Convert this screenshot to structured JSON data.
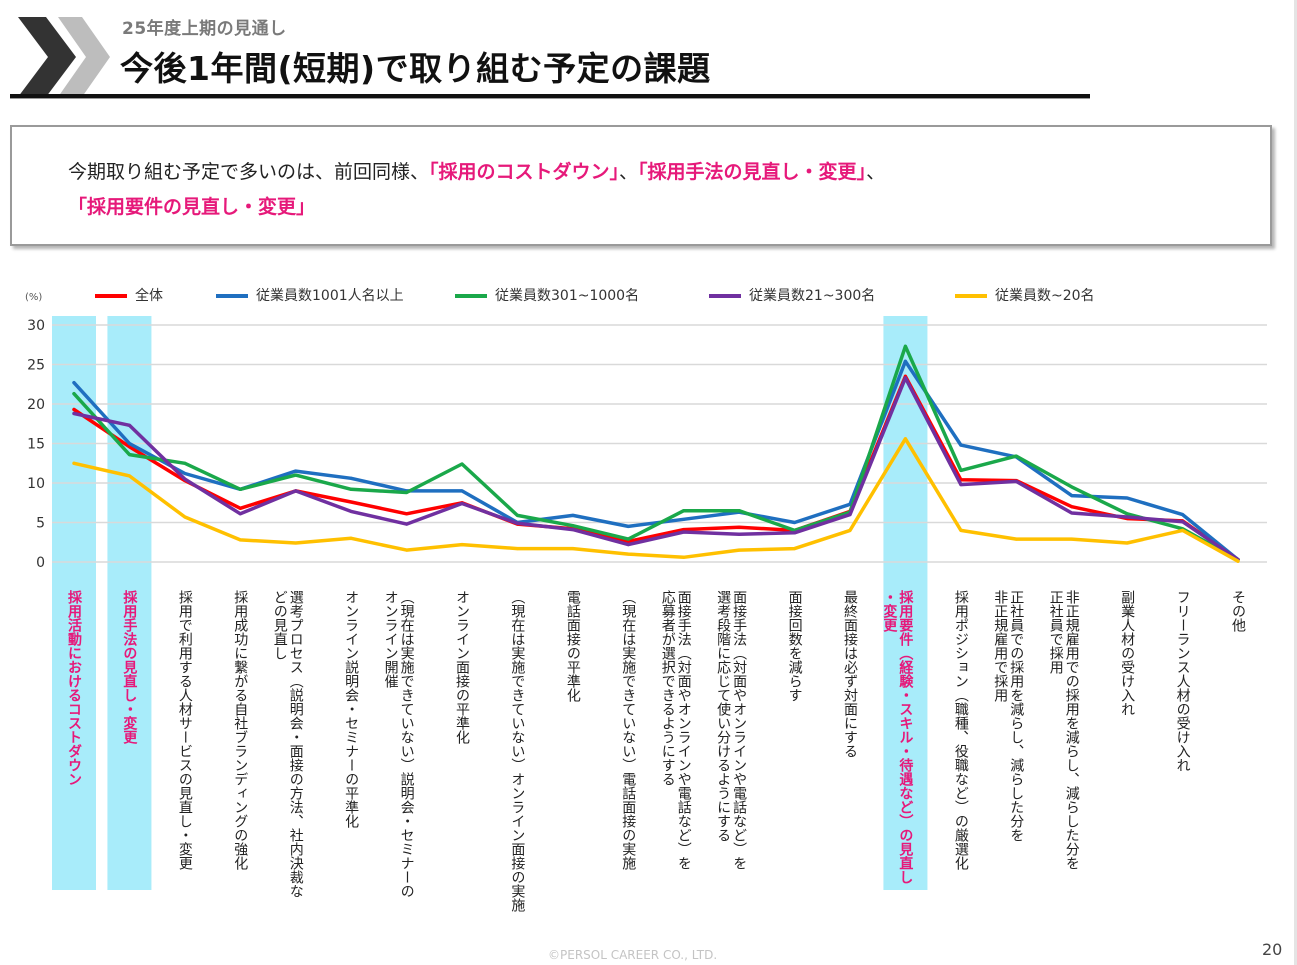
{
  "header": {
    "subtitle": "25年度上期の見通し",
    "title": "今後1年間(短期)で取り組む予定の課題"
  },
  "summary": {
    "prefix": "今期取り組む予定で多いのは、前回同様、",
    "highlight1": "「採用のコストダウン」",
    "sep1": "、",
    "highlight2": "「採用手法の見直し・変更」",
    "sep2": "、",
    "highlight3": "「採用要件の見直し・変更」"
  },
  "footer": {
    "copyright": "©PERSOL CAREER CO., LTD.",
    "page_number": "20"
  },
  "colors": {
    "highlight_text": "#e6197a",
    "highlight_band": "#a8ecfa",
    "gridline": "#d9d9d9"
  },
  "chart_data": {
    "type": "line",
    "title": "",
    "xlabel": "",
    "ylabel": "(%)",
    "ylim": [
      0,
      30
    ],
    "yticks": [
      0,
      5,
      10,
      15,
      20,
      25,
      30
    ],
    "grid": true,
    "legend_position": "top",
    "categories": [
      "採用活動におけるコストダウン",
      "採用手法の見直し・変更",
      "採用で利用する人材サービスの見直し・変更",
      "採用成功に繋がる自社ブランディングの強化",
      "選考プロセス（説明会・面接の方法、社内決裁などの見直し",
      "オンライン説明会・セミナーの平準化",
      "（現在は実施できていない）説明会・セミナーのオンライン開催",
      "オンライン面接の平準化",
      "（現在は実施できていない）オンライン面接の実施",
      "電話面接の平準化",
      "（現在は実施できていない）電話面接の実施",
      "面接手法（対面やオンラインや電話など）を応募者が選択できるようにする",
      "面接手法（対面やオンラインや電話など）を選考段階に応じて使い分けるようにする",
      "面接回数を減らす",
      "最終面接は必ず対面にする",
      "採用要件（経験・スキル・待遇など）の見直し・変更",
      "採用ポジション（職種、役職など）の厳選化",
      "正社員での採用を減らし、減らした分を非正規雇用で採用",
      "非正規雇用での採用を減らし、減らした分を正社員で採用",
      "副業人材の受け入れ",
      "フリーランス人材の受け入れ",
      "その他"
    ],
    "category_labels_wrapped": [
      [
        "採用活動におけるコストダウン"
      ],
      [
        "採用手法の見直し・変更"
      ],
      [
        "採用で利用する人材サービスの見直し・変更"
      ],
      [
        "採用成功に繋がる自社ブランディングの強化"
      ],
      [
        "選考プロセス（説明会・面接の方法、社内決裁な",
        "どの見直し"
      ],
      [
        "オンライン説明会・セミナーの平準化"
      ],
      [
        "（現在は実施できていない）説明会・セミナーの",
        "オンライン開催"
      ],
      [
        "オンライン面接の平準化"
      ],
      [
        "（現在は実施できていない）オンライン面接の実施"
      ],
      [
        "電話面接の平準化"
      ],
      [
        "（現在は実施できていない）電話面接の実施"
      ],
      [
        "面接手法（対面やオンラインや電話など）を",
        "応募者が選択できるようにする"
      ],
      [
        "面接手法（対面やオンラインや電話など）を",
        "選考段階に応じて使い分けるようにする"
      ],
      [
        "面接回数を減らす"
      ],
      [
        "最終面接は必ず対面にする"
      ],
      [
        "採用要件（経験・スキル・待遇など）の見直し",
        "・変更"
      ],
      [
        "採用ポジション（職種、役職など）の厳選化"
      ],
      [
        "正社員での採用を減らし、減らした分を",
        "非正規雇用で採用"
      ],
      [
        "非正規雇用での採用を減らし、減らした分を",
        "正社員で採用"
      ],
      [
        "副業人材の受け入れ"
      ],
      [
        "フリーランス人材の受け入れ"
      ],
      [
        "その他"
      ]
    ],
    "highlighted_categories": [
      0,
      1,
      15
    ],
    "series": [
      {
        "name": "全体",
        "color": "#ff0000",
        "values": [
          19.3,
          14.6,
          10.3,
          6.8,
          9.0,
          7.6,
          6.1,
          7.5,
          4.8,
          4.2,
          2.6,
          4.1,
          4.4,
          4.0,
          6.4,
          23.5,
          10.4,
          10.3,
          7.0,
          5.5,
          5.2,
          0.3
        ]
      },
      {
        "name": "従業員数1001人名以上",
        "color": "#1f6fc0",
        "values": [
          22.7,
          15.0,
          11.2,
          9.2,
          11.5,
          10.6,
          9.0,
          9.0,
          5.0,
          5.9,
          4.5,
          5.4,
          6.3,
          5.0,
          7.3,
          25.4,
          14.8,
          13.3,
          8.4,
          8.1,
          6.0,
          0.3
        ]
      },
      {
        "name": "従業員数301~1000名",
        "color": "#1aa84a",
        "values": [
          21.3,
          13.6,
          12.5,
          9.2,
          11.0,
          9.2,
          8.8,
          12.4,
          5.9,
          4.6,
          2.9,
          6.5,
          6.5,
          4.0,
          6.3,
          27.3,
          11.6,
          13.4,
          9.5,
          6.1,
          4.2,
          0.3
        ]
      },
      {
        "name": "従業員数21~300名",
        "color": "#7030a0",
        "values": [
          18.8,
          17.3,
          10.5,
          6.1,
          9.0,
          6.4,
          4.8,
          7.4,
          4.9,
          4.1,
          2.2,
          3.8,
          3.5,
          3.7,
          6.0,
          23.3,
          9.8,
          10.2,
          6.2,
          5.7,
          5.1,
          0.3
        ]
      },
      {
        "name": "従業員数~20名",
        "color": "#ffc000",
        "values": [
          12.5,
          10.9,
          5.7,
          2.8,
          2.4,
          3.0,
          1.5,
          2.2,
          1.7,
          1.7,
          1.0,
          0.6,
          1.5,
          1.7,
          4.0,
          15.6,
          4.0,
          2.9,
          2.9,
          2.4,
          4.0,
          0.1
        ]
      }
    ]
  }
}
